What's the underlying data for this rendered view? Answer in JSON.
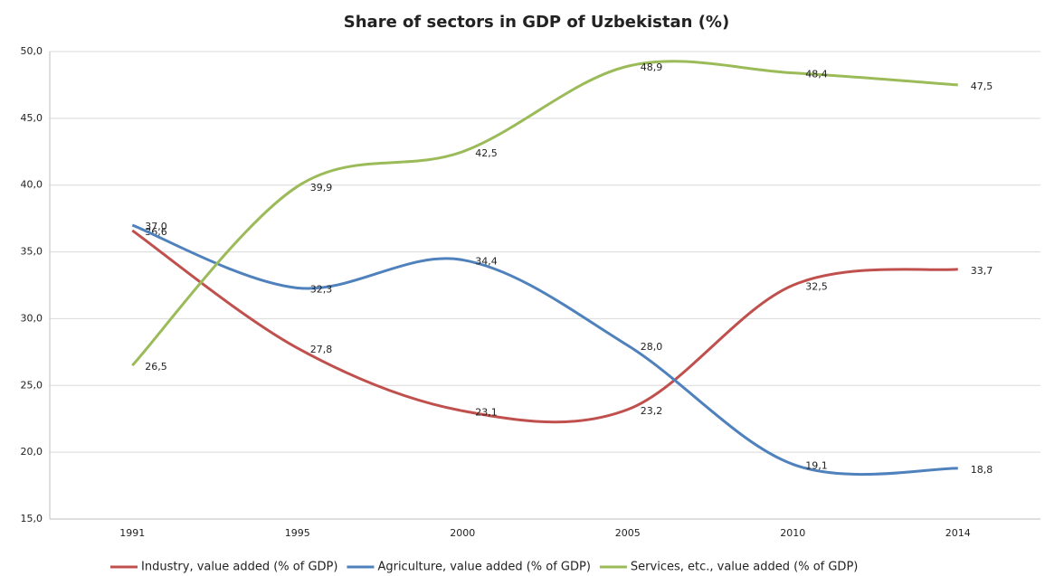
{
  "chart_data": {
    "type": "line",
    "title": "Share of sectors in GDP of Uzbekistan (%)",
    "categories": [
      "1991",
      "1995",
      "2000",
      "2005",
      "2010",
      "2014"
    ],
    "series": [
      {
        "name": "Industry, value added (% of GDP)",
        "color": "#c0504d",
        "values": [
          36.6,
          27.8,
          23.1,
          23.2,
          32.5,
          33.7
        ],
        "value_labels": [
          "36,6",
          "27,8",
          "23,1",
          "23,2",
          "32,5",
          "33,7"
        ]
      },
      {
        "name": "Agriculture, value added (% of GDP)",
        "color": "#4f81bd",
        "values": [
          37.0,
          32.3,
          34.4,
          28.0,
          19.1,
          18.8
        ],
        "value_labels": [
          "37,0",
          "32,3",
          "34,4",
          "28,0",
          "19,1",
          "18,8"
        ]
      },
      {
        "name": "Services, etc., value added (% of GDP)",
        "color": "#9bbb59",
        "values": [
          26.5,
          39.9,
          42.5,
          48.9,
          48.4,
          47.5
        ],
        "value_labels": [
          "26,5",
          "39,9",
          "42,5",
          "48,9",
          "48,4",
          "47,5"
        ]
      }
    ],
    "ylim": [
      15,
      50
    ],
    "yticks": [
      {
        "value": 15,
        "label": "15,0"
      },
      {
        "value": 20,
        "label": "20,0"
      },
      {
        "value": 25,
        "label": "25,0"
      },
      {
        "value": 30,
        "label": "30,0"
      },
      {
        "value": 35,
        "label": "35,0"
      },
      {
        "value": 40,
        "label": "40,0"
      },
      {
        "value": 45,
        "label": "45,0"
      },
      {
        "value": 50,
        "label": "50,0"
      }
    ],
    "grid": true,
    "smooth": true,
    "legend": "bottom"
  }
}
